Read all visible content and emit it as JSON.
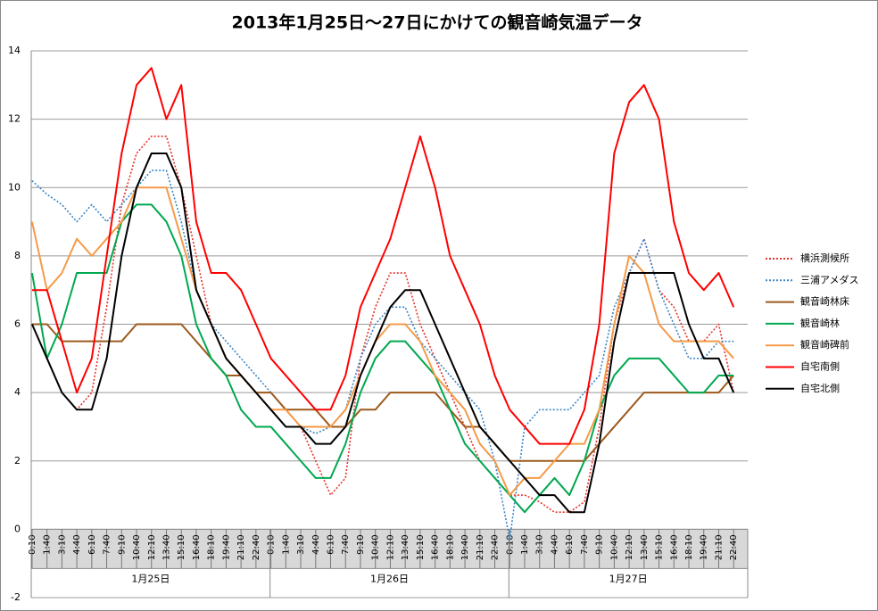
{
  "chart_data": {
    "type": "line",
    "title": "2013年1月25日～27日にかけての観音崎気温データ",
    "categories": [
      "0:10",
      "1:40",
      "3:10",
      "4:40",
      "6:10",
      "7:40",
      "9:10",
      "10:40",
      "12:10",
      "13:40",
      "15:10",
      "16:40",
      "18:10",
      "19:40",
      "21:10",
      "22:40",
      "0:10",
      "1:40",
      "3:10",
      "4:40",
      "6:10",
      "7:40",
      "9:10",
      "10:40",
      "12:10",
      "13:40",
      "15:10",
      "16:40",
      "18:10",
      "19:40",
      "21:10",
      "22:40",
      "0:10",
      "1:40",
      "3:10",
      "4:40",
      "6:10",
      "7:40",
      "9:10",
      "10:40",
      "12:10",
      "13:40",
      "15:10",
      "16:40",
      "18:10",
      "19:40",
      "21:10",
      "22:40"
    ],
    "groups": [
      "1月25日",
      "1月26日",
      "1月27日"
    ],
    "ylim": [
      -2,
      14
    ],
    "yticks": [
      -2,
      0,
      2,
      4,
      6,
      8,
      10,
      12,
      14
    ],
    "grid": true,
    "legend": "right",
    "series": [
      {
        "name": "横浜測候所",
        "color": "#e8312a",
        "style": "dotted",
        "values": [
          6,
          5,
          4,
          3.5,
          4,
          6.5,
          9.5,
          11,
          11.5,
          11.5,
          10,
          8,
          6,
          5,
          4.5,
          4,
          4,
          3.5,
          3,
          2,
          1,
          1.5,
          5,
          6.5,
          7.5,
          7.5,
          6,
          5,
          4,
          3,
          2,
          1.5,
          1,
          1,
          0.8,
          0.5,
          0.5,
          0.8,
          3,
          6,
          7.5,
          8.5,
          7,
          6.5,
          5.5,
          5.5,
          6,
          4
        ]
      },
      {
        "name": "三浦アメダス",
        "color": "#3a86c8",
        "style": "dotted",
        "values": [
          10.2,
          9.8,
          9.5,
          9,
          9.5,
          9,
          9.5,
          10,
          10.5,
          10.5,
          9,
          7,
          6,
          5.5,
          5,
          4.5,
          4,
          3.5,
          3,
          2.8,
          3,
          3.5,
          5,
          6,
          6.5,
          6.5,
          5.5,
          5,
          4.5,
          4,
          3.5,
          2,
          -0.3,
          3,
          3.5,
          3.5,
          3.5,
          4,
          4.5,
          6.5,
          7.5,
          8.5,
          7,
          6,
          5,
          5,
          5.5,
          5.5
        ]
      },
      {
        "name": "観音崎林床",
        "color": "#9c5a1c",
        "style": "solid",
        "values": [
          6,
          6,
          5.5,
          5.5,
          5.5,
          5.5,
          5.5,
          6,
          6,
          6,
          6,
          5.5,
          5,
          4.5,
          4.5,
          4,
          4,
          3.5,
          3.5,
          3.5,
          3,
          3,
          3.5,
          3.5,
          4,
          4,
          4,
          4,
          3.5,
          3,
          3,
          2.5,
          2,
          2,
          2,
          2,
          2,
          2,
          2.5,
          3,
          3.5,
          4,
          4,
          4,
          4,
          4,
          4,
          4.5
        ]
      },
      {
        "name": "観音崎林",
        "color": "#00a850",
        "style": "solid",
        "values": [
          7.5,
          5,
          6,
          7.5,
          7.5,
          7.5,
          9,
          9.5,
          9.5,
          9,
          8,
          6,
          5,
          4.5,
          3.5,
          3,
          3,
          2.5,
          2,
          1.5,
          1.5,
          2.5,
          4,
          5,
          5.5,
          5.5,
          5,
          4.5,
          3.5,
          2.5,
          2,
          1.5,
          1,
          0.5,
          1,
          1.5,
          1,
          2,
          3.5,
          4.5,
          5,
          5,
          5,
          4.5,
          4,
          4,
          4.5,
          4.5
        ]
      },
      {
        "name": "観音崎碑前",
        "color": "#f59a48",
        "style": "solid",
        "values": [
          9,
          7,
          7.5,
          8.5,
          8,
          8.5,
          9,
          10,
          10,
          10,
          8.5,
          7,
          6,
          5,
          4.5,
          4,
          3.5,
          3.5,
          3,
          3,
          3,
          3.5,
          4.5,
          5.5,
          6,
          6,
          5.5,
          4.5,
          4,
          3.5,
          2.5,
          2,
          1,
          1.5,
          1.5,
          2,
          2.5,
          2.5,
          3.5,
          6,
          8,
          7.5,
          6,
          5.5,
          5.5,
          5.5,
          5.5,
          5
        ]
      },
      {
        "name": "自宅南側",
        "color": "#ff0000",
        "style": "solid",
        "values": [
          7,
          7,
          5.5,
          4,
          5,
          8,
          11,
          13,
          13.5,
          12,
          13,
          9,
          7.5,
          7.5,
          7,
          6,
          5,
          4.5,
          4,
          3.5,
          3.5,
          4.5,
          6.5,
          7.5,
          8.5,
          10,
          11.5,
          10,
          8,
          7,
          6,
          4.5,
          3.5,
          3,
          2.5,
          2.5,
          2.5,
          3.5,
          6,
          11,
          12.5,
          13,
          12,
          9,
          7.5,
          7,
          7.5,
          6.5
        ]
      },
      {
        "name": "自宅北側",
        "color": "#000000",
        "style": "solid",
        "values": [
          6,
          5,
          4,
          3.5,
          3.5,
          5,
          8,
          10,
          11,
          11,
          10,
          7,
          6,
          5,
          4.5,
          4,
          3.5,
          3,
          3,
          2.5,
          2.5,
          3,
          4.5,
          5.5,
          6.5,
          7,
          7,
          6,
          5,
          4,
          3,
          2.5,
          2,
          1.5,
          1,
          1,
          0.5,
          0.5,
          2.5,
          5.5,
          7.5,
          7.5,
          7.5,
          7.5,
          6,
          5,
          5,
          4
        ]
      }
    ]
  }
}
